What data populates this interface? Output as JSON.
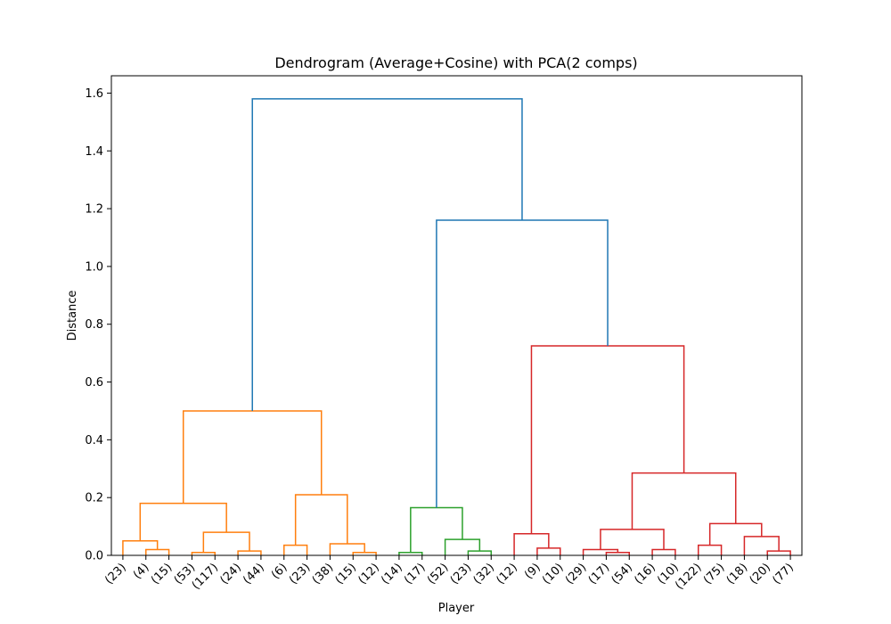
{
  "chart_data": {
    "type": "dendrogram",
    "title": "Dendrogram (Average+Cosine) with PCA(2 comps)",
    "xlabel": "Player",
    "ylabel": "Distance",
    "ylim": [
      0,
      1.66
    ],
    "yticks": [
      0.0,
      0.2,
      0.4,
      0.6,
      0.8,
      1.0,
      1.2,
      1.4,
      1.6
    ],
    "ytick_labels": [
      "0.0",
      "0.2",
      "0.4",
      "0.6",
      "0.8",
      "1.0",
      "1.2",
      "1.4",
      "1.6"
    ],
    "grid": false,
    "leaves": [
      "(23)",
      "(4)",
      "(15)",
      "(53)",
      "(117)",
      "(24)",
      "(44)",
      "(6)",
      "(23)",
      "(38)",
      "(15)",
      "(12)",
      "(14)",
      "(17)",
      "(52)",
      "(23)",
      "(32)",
      "(12)",
      "(9)",
      "(10)",
      "(29)",
      "(17)",
      "(54)",
      "(16)",
      "(10)",
      "(122)",
      "(75)",
      "(18)",
      "(20)",
      "(77)"
    ],
    "colors": {
      "above_threshold": "#1f77b4",
      "cluster_1": "#ff7f0e",
      "cluster_2": "#2ca02c",
      "cluster_3": "#d62728"
    },
    "merges": [
      {
        "left": "L1",
        "right": "L2",
        "height": 0.02,
        "color": "cluster_1"
      },
      {
        "left": "L0",
        "right": "M0",
        "height": 0.05,
        "color": "cluster_1"
      },
      {
        "left": "L3",
        "right": "L4",
        "height": 0.01,
        "color": "cluster_1"
      },
      {
        "left": "L5",
        "right": "L6",
        "height": 0.015,
        "color": "cluster_1"
      },
      {
        "left": "M2",
        "right": "M3",
        "height": 0.08,
        "color": "cluster_1"
      },
      {
        "left": "M1",
        "right": "M4",
        "height": 0.18,
        "color": "cluster_1"
      },
      {
        "left": "L7",
        "right": "L8",
        "height": 0.035,
        "color": "cluster_1"
      },
      {
        "left": "L10",
        "right": "L11",
        "height": 0.01,
        "color": "cluster_1"
      },
      {
        "left": "L9",
        "right": "M7",
        "height": 0.04,
        "color": "cluster_1"
      },
      {
        "left": "M6",
        "right": "M8",
        "height": 0.21,
        "color": "cluster_1"
      },
      {
        "left": "M5",
        "right": "M9",
        "height": 0.5,
        "color": "cluster_1"
      },
      {
        "left": "L12",
        "right": "L13",
        "height": 0.01,
        "color": "cluster_2"
      },
      {
        "left": "L15",
        "right": "L16",
        "height": 0.015,
        "color": "cluster_2"
      },
      {
        "left": "L14",
        "right": "M12",
        "height": 0.055,
        "color": "cluster_2"
      },
      {
        "left": "M11",
        "right": "M13",
        "height": 0.165,
        "color": "cluster_2"
      },
      {
        "left": "L18",
        "right": "L19",
        "height": 0.025,
        "color": "cluster_3"
      },
      {
        "left": "L17",
        "right": "M15",
        "height": 0.075,
        "color": "cluster_3"
      },
      {
        "left": "L21",
        "right": "L22",
        "height": 0.01,
        "color": "cluster_3"
      },
      {
        "left": "L20",
        "right": "M17",
        "height": 0.02,
        "color": "cluster_3"
      },
      {
        "left": "L23",
        "right": "L24",
        "height": 0.02,
        "color": "cluster_3"
      },
      {
        "left": "M18",
        "right": "M19",
        "height": 0.09,
        "color": "cluster_3"
      },
      {
        "left": "L25",
        "right": "L26",
        "height": 0.035,
        "color": "cluster_3"
      },
      {
        "left": "L28",
        "right": "L29",
        "height": 0.015,
        "color": "cluster_3"
      },
      {
        "left": "L27",
        "right": "M22",
        "height": 0.065,
        "color": "cluster_3"
      },
      {
        "left": "M21",
        "right": "M23",
        "height": 0.11,
        "color": "cluster_3"
      },
      {
        "left": "M20",
        "right": "M24",
        "height": 0.285,
        "color": "cluster_3"
      },
      {
        "left": "M16",
        "right": "M25",
        "height": 0.725,
        "color": "cluster_3"
      },
      {
        "left": "M14",
        "right": "M26",
        "height": 1.16,
        "color": "above_threshold"
      },
      {
        "left": "M10",
        "right": "M27",
        "height": 1.58,
        "color": "above_threshold"
      }
    ]
  }
}
